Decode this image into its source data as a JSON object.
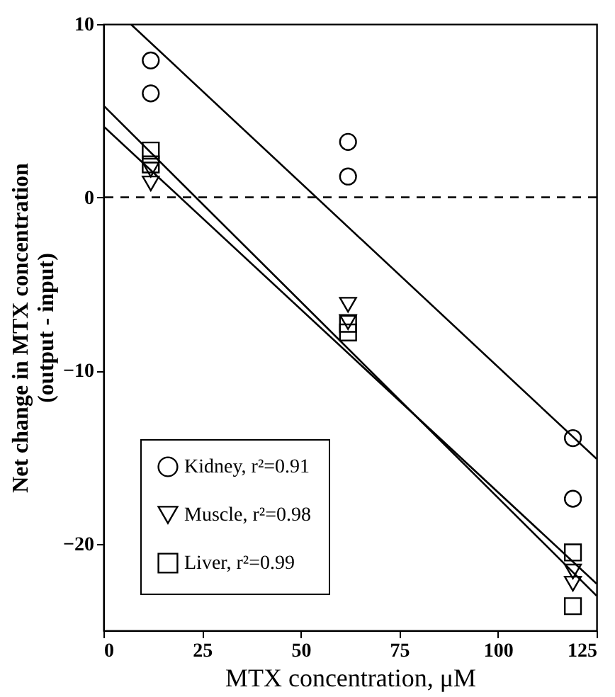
{
  "chart_data": {
    "type": "scatter",
    "xlabel": "MTX concentration, μM",
    "ylabel": "Net change in MTX concentration\n(output - input)",
    "xlim": [
      0,
      125
    ],
    "xticks": [
      0,
      25,
      50,
      75,
      100,
      125
    ],
    "ylim": [
      -25,
      10
    ],
    "yticks": [
      -20,
      -10,
      0,
      10
    ],
    "grid": false,
    "legend": "bottom left",
    "ref_lines": [
      {
        "axis": "y",
        "value": 0,
        "line_style": "dashed",
        "color": "#000000"
      }
    ],
    "series": [
      {
        "name": "Kidney, r²=0.91",
        "marker": "circle",
        "color": "#000000",
        "x": [
          12,
          12,
          62,
          62,
          119,
          119
        ],
        "values": [
          7.9,
          6.0,
          3.2,
          1.2,
          -13.9,
          -17.4
        ]
      },
      {
        "name": "Muscle, r²=0.98",
        "marker": "triangle-down",
        "color": "#000000",
        "x": [
          12,
          12,
          62,
          62,
          119,
          119
        ],
        "values": [
          1.6,
          0.8,
          -6.2,
          -7.2,
          -21.6,
          -22.3
        ]
      },
      {
        "name": "Liver, r²=0.99",
        "marker": "square",
        "color": "#000000",
        "x": [
          12,
          12,
          62,
          62,
          119,
          119
        ],
        "values": [
          2.7,
          1.9,
          -7.3,
          -7.8,
          -20.5,
          -23.6
        ]
      },
      {
        "type": "line",
        "color": "#000000",
        "x": [
          6.9,
          125
        ],
        "values": [
          10,
          -15.1
        ]
      },
      {
        "type": "line",
        "color": "#000000",
        "x": [
          0,
          125
        ],
        "values": [
          4.1,
          -22.3
        ]
      },
      {
        "type": "line",
        "color": "#000000",
        "x": [
          0,
          125
        ],
        "values": [
          5.3,
          -23.0
        ]
      }
    ]
  }
}
